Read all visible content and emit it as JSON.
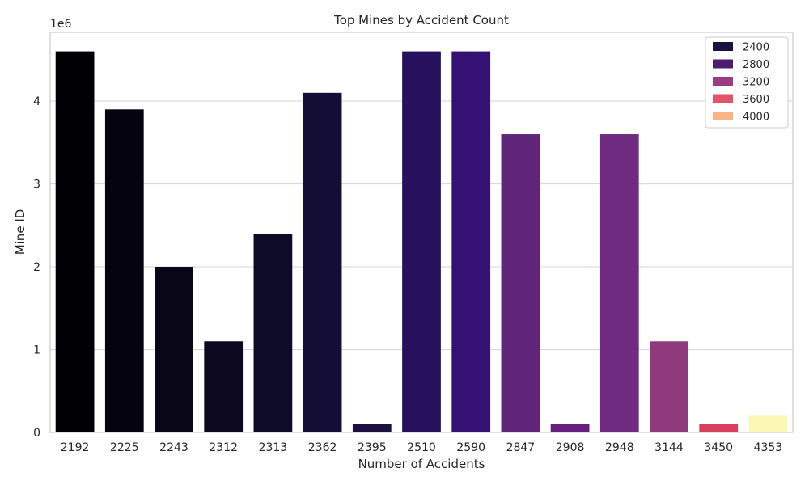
{
  "chart_data": {
    "type": "bar",
    "title": "Top Mines by Accident Count",
    "xlabel": "Number of Accidents",
    "ylabel": "Mine ID",
    "y_offset_label": "1e6",
    "y_scale": 1000000,
    "ylim": [
      0,
      4830000
    ],
    "yticks": [
      0,
      1,
      2,
      3,
      4
    ],
    "grid": true,
    "categories": [
      "2192",
      "2225",
      "2243",
      "2312",
      "2313",
      "2362",
      "2395",
      "2510",
      "2590",
      "2847",
      "2908",
      "2948",
      "3144",
      "3450",
      "4353"
    ],
    "values": [
      4600000,
      3900000,
      2000000,
      1100000,
      2400000,
      4100000,
      100000,
      4600000,
      4600000,
      3600000,
      100000,
      3600000,
      1100000,
      100000,
      200000
    ],
    "colors": [
      "#000004",
      "#04030f",
      "#080617",
      "#0b0820",
      "#0e0b28",
      "#140e36",
      "#1b1040",
      "#27115e",
      "#341172",
      "#60247a",
      "#671f7d",
      "#6e2b80",
      "#903a7e",
      "#d7415e",
      "#fcf6b4"
    ],
    "legend": {
      "placement": "top-right",
      "entries": [
        {
          "label": "2400",
          "color": "#1c1140"
        },
        {
          "label": "2800",
          "color": "#4f1a6f"
        },
        {
          "label": "3200",
          "color": "#9b3b82"
        },
        {
          "label": "3600",
          "color": "#e1546a"
        },
        {
          "label": "4000",
          "color": "#f9b485"
        }
      ]
    }
  }
}
